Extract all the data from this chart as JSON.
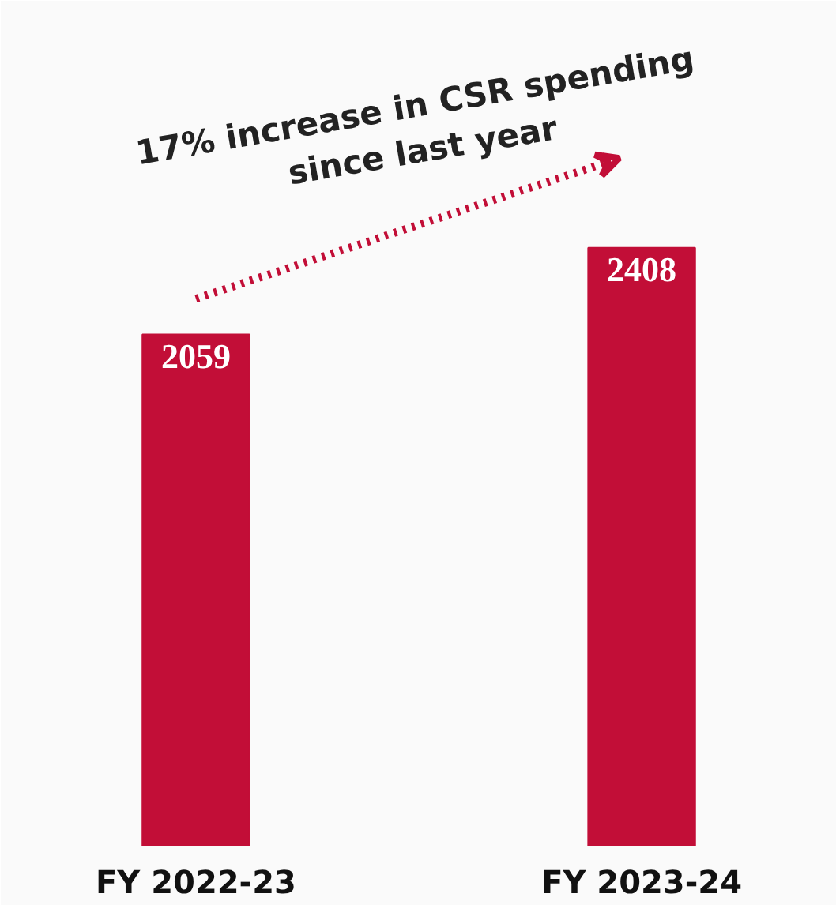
{
  "chart_data": {
    "type": "bar",
    "categories": [
      "FY 2022-23",
      "FY 2023-24"
    ],
    "values": [
      2059,
      2408
    ],
    "color": "#c20e37",
    "data_labels": true,
    "annotations": [
      "17% increase in CSR spending since last year"
    ]
  }
}
